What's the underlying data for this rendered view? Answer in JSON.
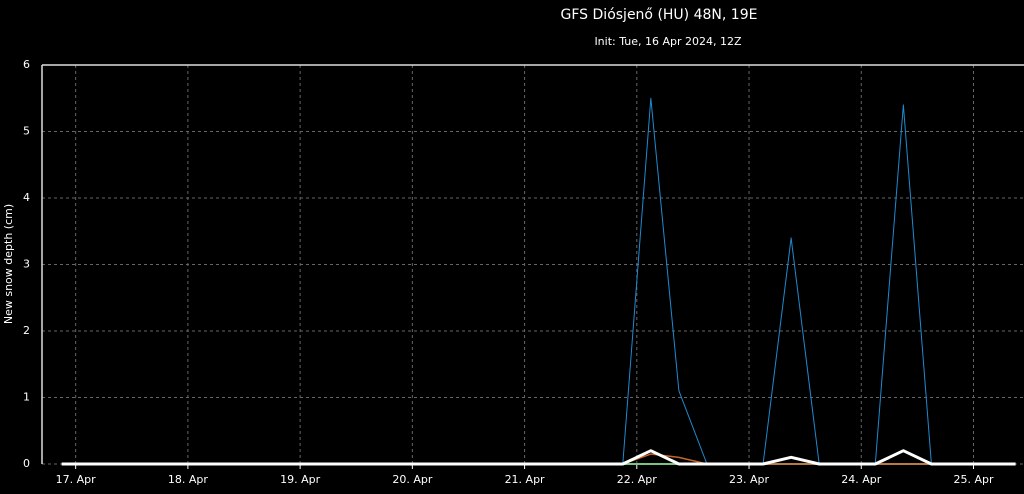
{
  "chart_data": {
    "type": "line",
    "title": "GFS Diósjenő (HU) 48N, 19E",
    "subtitle": "Init: Tue, 16 Apr 2024, 12Z",
    "y_label": "New snow depth (cm)",
    "x": [
      0.875,
      5.875,
      6.125,
      6.375,
      6.625,
      7.125,
      7.375,
      7.625,
      8.125,
      8.375,
      8.625,
      9.375
    ],
    "series": [
      {
        "color": "#7cc47c",
        "width": 2,
        "values": [
          0,
          0,
          0,
          0,
          0,
          0,
          0,
          0,
          0,
          0,
          0,
          0
        ]
      },
      {
        "color": "#1f8ad0",
        "width": 1,
        "values": [
          0,
          0,
          5.5,
          1.1,
          0,
          0,
          3.4,
          0,
          0,
          5.4,
          0,
          0
        ]
      },
      {
        "color": "#c8642a",
        "width": 1.5,
        "values": [
          0,
          0,
          0.15,
          0.1,
          0,
          0,
          0,
          0,
          0,
          0,
          0,
          0
        ]
      },
      {
        "color": "#ffffff",
        "width": 3,
        "values": [
          0,
          0,
          0.2,
          0,
          0,
          0,
          0.1,
          0,
          0,
          0.2,
          0,
          0
        ]
      }
    ],
    "xlim": [
      0.7,
      9.45
    ],
    "xticks": [
      {
        "value": 1,
        "label": "17. Apr"
      },
      {
        "value": 2,
        "label": "18. Apr"
      },
      {
        "value": 3,
        "label": "19. Apr"
      },
      {
        "value": 4,
        "label": "20. Apr"
      },
      {
        "value": 5,
        "label": "21. Apr"
      },
      {
        "value": 6,
        "label": "22. Apr"
      },
      {
        "value": 7,
        "label": "23. Apr"
      },
      {
        "value": 8,
        "label": "24. Apr"
      },
      {
        "value": 9,
        "label": "25. Apr"
      }
    ],
    "ylim": [
      0,
      6
    ],
    "yticks": [
      0,
      1,
      2,
      3,
      4,
      5,
      6
    ],
    "grid": true
  }
}
